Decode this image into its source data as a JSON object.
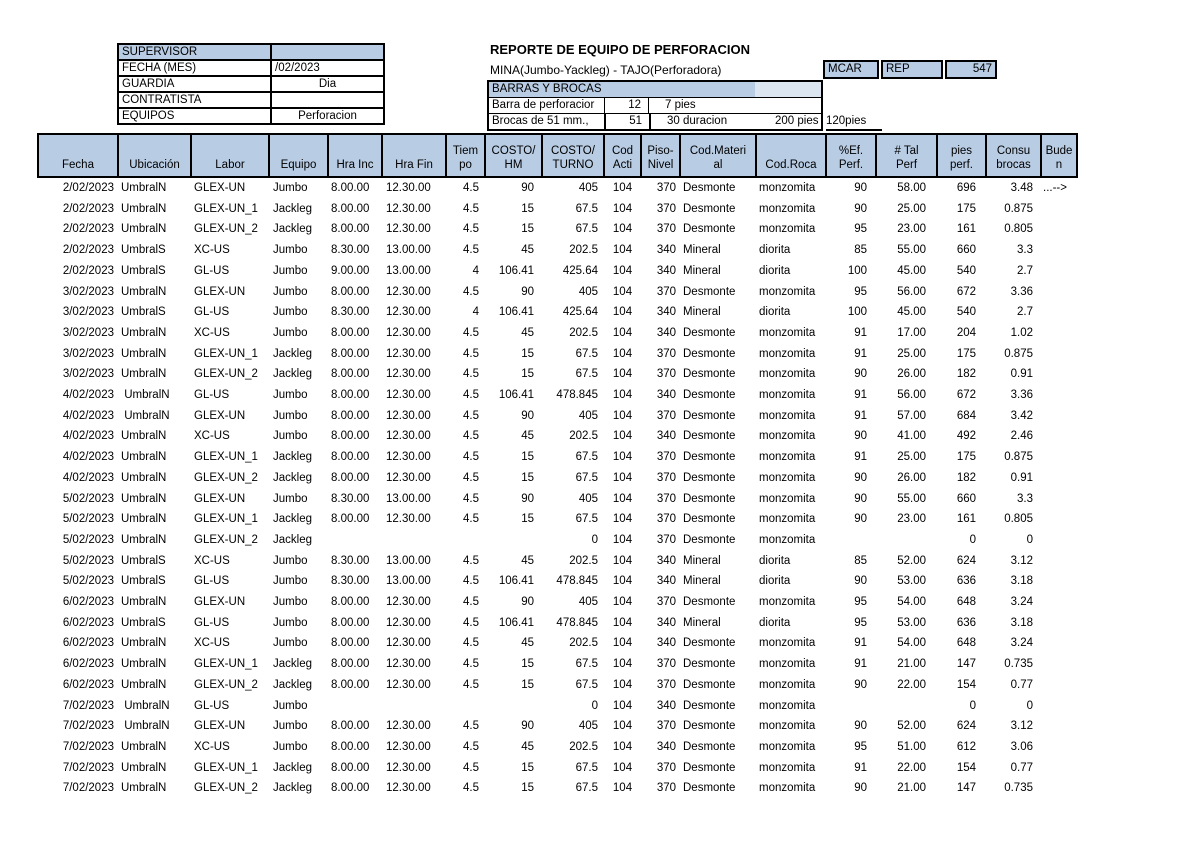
{
  "info_panel": {
    "rows": [
      {
        "label": "SUPERVISOR",
        "value": ""
      },
      {
        "label": "FECHA (MES)",
        "value": "/02/2023"
      },
      {
        "label": "GUARDIA",
        "value": "Dia"
      },
      {
        "label": "CONTRATISTA",
        "value": ""
      },
      {
        "label": "EQUIPOS",
        "value": "Perforacion"
      }
    ]
  },
  "header": {
    "title": "REPORTE DE EQUIPO DE PERFORACION",
    "subtitle": "MINA(Jumbo-Yackleg) - TAJO(Perforadora)",
    "codes": {
      "c1": "MCAR",
      "c2": "REP",
      "c3": "547"
    }
  },
  "barras": {
    "title": "BARRAS Y BROCAS",
    "barra_label": "Barra de perforacior",
    "barra_qty": "12",
    "barra_len": "7 pies",
    "brocas_label": "Brocas de 51 mm.,",
    "brocas_qty": "51",
    "brocas_dur": "30 duracion",
    "brocas_pies": "200 pies",
    "outside": "120pies"
  },
  "colors": {
    "header_blue": "#b8cce4",
    "light_blue": "#dce6f1",
    "border_black": "#000000"
  },
  "table": {
    "columns": [
      "Fecha",
      "Ubicación",
      "Labor",
      "Equipo",
      "Hra Inc",
      "Hra Fin",
      "Tiem\npo",
      "COSTO/\nHM",
      "COSTO/\nTURNO",
      "Cod\nActi",
      "Piso-\nNivel",
      "Cod.Materi\nal",
      "Cod.Roca",
      "%Ef.\nPerf.",
      "# Tal\nPerf",
      "pies\nperf.",
      "Consu\nbrocas",
      "Bude\nn"
    ],
    "rows": [
      [
        "2/02/2023",
        "UmbralN",
        "GLEX-UN",
        "Jumbo",
        "8.00.00",
        "12.30.00",
        "4.5",
        "90",
        "405",
        "104",
        "370",
        "Desmonte",
        "monzomita",
        "90",
        "58.00",
        "696",
        "3.48",
        "...-->"
      ],
      [
        "2/02/2023",
        "UmbralN",
        "GLEX-UN_1",
        "Jackleg",
        "8.00.00",
        "12.30.00",
        "4.5",
        "15",
        "67.5",
        "104",
        "370",
        "Desmonte",
        "monzomita",
        "90",
        "25.00",
        "175",
        "0.875",
        ""
      ],
      [
        "2/02/2023",
        "UmbralN",
        "GLEX-UN_2",
        "Jackleg",
        "8.00.00",
        "12.30.00",
        "4.5",
        "15",
        "67.5",
        "104",
        "370",
        "Desmonte",
        "monzomita",
        "95",
        "23.00",
        "161",
        "0.805",
        ""
      ],
      [
        "2/02/2023",
        "UmbralS",
        "XC-US",
        "Jumbo",
        "8.30.00",
        "13.00.00",
        "4.5",
        "45",
        "202.5",
        "104",
        "340",
        "Mineral",
        "diorita",
        "85",
        "55.00",
        "660",
        "3.3",
        ""
      ],
      [
        "2/02/2023",
        "UmbralS",
        "GL-US",
        "Jumbo",
        "9.00.00",
        "13.00.00",
        "4",
        "106.41",
        "425.64",
        "104",
        "340",
        "Mineral",
        "diorita",
        "100",
        "45.00",
        "540",
        "2.7",
        ""
      ],
      [
        "3/02/2023",
        "UmbralN",
        "GLEX-UN",
        "Jumbo",
        "8.00.00",
        "12.30.00",
        "4.5",
        "90",
        "405",
        "104",
        "370",
        "Desmonte",
        "monzomita",
        "95",
        "56.00",
        "672",
        "3.36",
        ""
      ],
      [
        "3/02/2023",
        "UmbralS",
        "GL-US",
        "Jumbo",
        "8.30.00",
        "12.30.00",
        "4",
        "106.41",
        "425.64",
        "104",
        "340",
        "Mineral",
        "diorita",
        "100",
        "45.00",
        "540",
        "2.7",
        ""
      ],
      [
        "3/02/2023",
        "UmbralN",
        "XC-US",
        "Jumbo",
        "8.00.00",
        "12.30.00",
        "4.5",
        "45",
        "202.5",
        "104",
        "340",
        "Desmonte",
        "monzomita",
        "91",
        "17.00",
        "204",
        "1.02",
        ""
      ],
      [
        "3/02/2023",
        "UmbralN",
        "GLEX-UN_1",
        "Jackleg",
        "8.00.00",
        "12.30.00",
        "4.5",
        "15",
        "67.5",
        "104",
        "370",
        "Desmonte",
        "monzomita",
        "91",
        "25.00",
        "175",
        "0.875",
        ""
      ],
      [
        "3/02/2023",
        "UmbralN",
        "GLEX-UN_2",
        "Jackleg",
        "8.00.00",
        "12.30.00",
        "4.5",
        "15",
        "67.5",
        "104",
        "370",
        "Desmonte",
        "monzomita",
        "90",
        "26.00",
        "182",
        "0.91",
        ""
      ],
      [
        "4/02/2023",
        " UmbralN",
        "GL-US",
        "Jumbo",
        "8.00.00",
        "12.30.00",
        "4.5",
        "106.41",
        "478.845",
        "104",
        "340",
        "Desmonte",
        "monzomita",
        "91",
        "56.00",
        "672",
        "3.36",
        ""
      ],
      [
        "4/02/2023",
        " UmbralN",
        "GLEX-UN",
        "Jumbo",
        "8.00.00",
        "12.30.00",
        "4.5",
        "90",
        "405",
        "104",
        "370",
        "Desmonte",
        "monzomita",
        "91",
        "57.00",
        "684",
        "3.42",
        ""
      ],
      [
        "4/02/2023",
        "UmbralN",
        "XC-US",
        "Jumbo",
        "8.00.00",
        "12.30.00",
        "4.5",
        "45",
        "202.5",
        "104",
        "340",
        "Desmonte",
        "monzomita",
        "90",
        "41.00",
        "492",
        "2.46",
        ""
      ],
      [
        "4/02/2023",
        "UmbralN",
        "GLEX-UN_1",
        "Jackleg",
        "8.00.00",
        "12.30.00",
        "4.5",
        "15",
        "67.5",
        "104",
        "370",
        "Desmonte",
        "monzomita",
        "91",
        "25.00",
        "175",
        "0.875",
        ""
      ],
      [
        "4/02/2023",
        "UmbralN",
        "GLEX-UN_2",
        "Jackleg",
        "8.00.00",
        "12.30.00",
        "4.5",
        "15",
        "67.5",
        "104",
        "370",
        "Desmonte",
        "monzomita",
        "90",
        "26.00",
        "182",
        "0.91",
        ""
      ],
      [
        "5/02/2023",
        "UmbralN",
        "GLEX-UN",
        "Jumbo",
        "8.30.00",
        "13.00.00",
        "4.5",
        "90",
        "405",
        "104",
        "370",
        "Desmonte",
        "monzomita",
        "90",
        "55.00",
        "660",
        "3.3",
        ""
      ],
      [
        "5/02/2023",
        "UmbralN",
        "GLEX-UN_1",
        "Jackleg",
        "8.00.00",
        "12.30.00",
        "4.5",
        "15",
        "67.5",
        "104",
        "370",
        "Desmonte",
        "monzomita",
        "90",
        "23.00",
        "161",
        "0.805",
        ""
      ],
      [
        "5/02/2023",
        "UmbralN",
        "GLEX-UN_2",
        "Jackleg",
        "",
        "",
        "",
        "",
        "0",
        "104",
        "370",
        "Desmonte",
        "monzomita",
        "",
        "",
        "0",
        "0",
        ""
      ],
      [
        "5/02/2023",
        "UmbralS",
        "XC-US",
        "Jumbo",
        "8.30.00",
        "13.00.00",
        "4.5",
        "45",
        "202.5",
        "104",
        "340",
        "Mineral",
        "diorita",
        "85",
        "52.00",
        "624",
        "3.12",
        ""
      ],
      [
        "5/02/2023",
        "UmbralS",
        "GL-US",
        "Jumbo",
        "8.30.00",
        "13.00.00",
        "4.5",
        "106.41",
        "478.845",
        "104",
        "340",
        "Mineral",
        "diorita",
        "90",
        "53.00",
        "636",
        "3.18",
        ""
      ],
      [
        "6/02/2023",
        "UmbralN",
        "GLEX-UN",
        "Jumbo",
        "8.00.00",
        "12.30.00",
        "4.5",
        "90",
        "405",
        "104",
        "370",
        "Desmonte",
        "monzomita",
        "95",
        "54.00",
        "648",
        "3.24",
        ""
      ],
      [
        "6/02/2023",
        "UmbralS",
        "GL-US",
        "Jumbo",
        "8.00.00",
        "12.30.00",
        "4.5",
        "106.41",
        "478.845",
        "104",
        "340",
        "Mineral",
        "diorita",
        "95",
        "53.00",
        "636",
        "3.18",
        ""
      ],
      [
        "6/02/2023",
        "UmbralN",
        "XC-US",
        "Jumbo",
        "8.00.00",
        "12.30.00",
        "4.5",
        "45",
        "202.5",
        "104",
        "340",
        "Desmonte",
        "monzomita",
        "91",
        "54.00",
        "648",
        "3.24",
        ""
      ],
      [
        "6/02/2023",
        "UmbralN",
        "GLEX-UN_1",
        "Jackleg",
        "8.00.00",
        "12.30.00",
        "4.5",
        "15",
        "67.5",
        "104",
        "370",
        "Desmonte",
        "monzomita",
        "91",
        "21.00",
        "147",
        "0.735",
        ""
      ],
      [
        "6/02/2023",
        "UmbralN",
        "GLEX-UN_2",
        "Jackleg",
        "8.00.00",
        "12.30.00",
        "4.5",
        "15",
        "67.5",
        "104",
        "370",
        "Desmonte",
        "monzomita",
        "90",
        "22.00",
        "154",
        "0.77",
        ""
      ],
      [
        "7/02/2023",
        " UmbralN",
        "GL-US",
        "Jumbo",
        "",
        "",
        "",
        "",
        "0",
        "104",
        "340",
        "Desmonte",
        "monzomita",
        "",
        "",
        "0",
        "0",
        ""
      ],
      [
        "7/02/2023",
        " UmbralN",
        "GLEX-UN",
        "Jumbo",
        "8.00.00",
        "12.30.00",
        "4.5",
        "90",
        "405",
        "104",
        "370",
        "Desmonte",
        "monzomita",
        "90",
        "52.00",
        "624",
        "3.12",
        ""
      ],
      [
        "7/02/2023",
        "UmbralN",
        "XC-US",
        "Jumbo",
        "8.00.00",
        "12.30.00",
        "4.5",
        "45",
        "202.5",
        "104",
        "340",
        "Desmonte",
        "monzomita",
        "95",
        "51.00",
        "612",
        "3.06",
        ""
      ],
      [
        "7/02/2023",
        "UmbralN",
        "GLEX-UN_1",
        "Jackleg",
        "8.00.00",
        "12.30.00",
        "4.5",
        "15",
        "67.5",
        "104",
        "370",
        "Desmonte",
        "monzomita",
        "91",
        "22.00",
        "154",
        "0.77",
        ""
      ],
      [
        "7/02/2023",
        "UmbralN",
        "GLEX-UN_2",
        "Jackleg",
        "8.00.00",
        "12.30.00",
        "4.5",
        "15",
        "67.5",
        "104",
        "370",
        "Desmonte",
        "monzomita",
        "90",
        "21.00",
        "147",
        "0.735",
        ""
      ]
    ]
  }
}
